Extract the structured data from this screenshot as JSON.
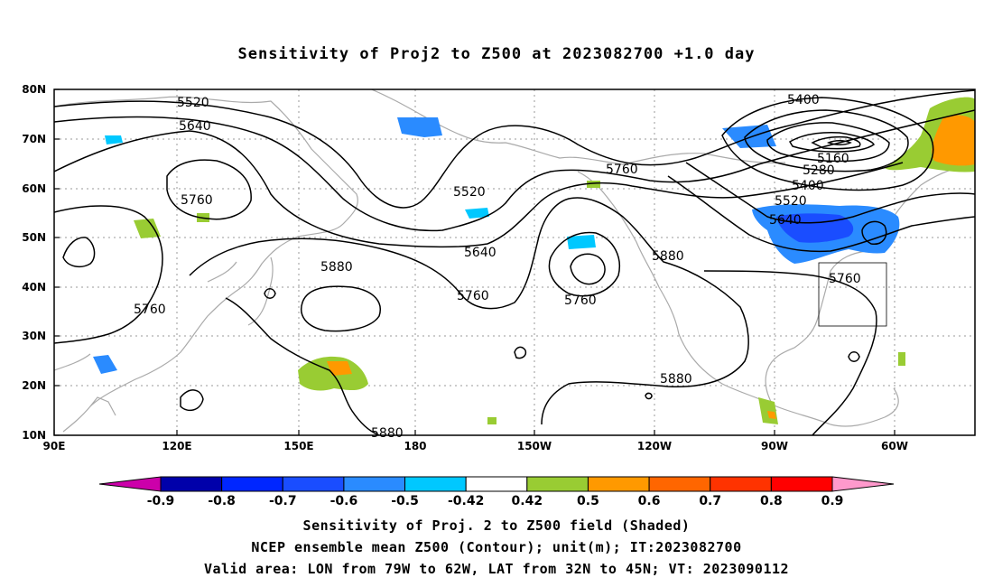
{
  "title": "Sensitivity of Proj2 to Z500 at 2023082700 +1.0 day",
  "lon_ticks": [
    "90E",
    "120E",
    "150E",
    "180",
    "150W",
    "120W",
    "90W",
    "60W"
  ],
  "lat_ticks": [
    "80N",
    "70N",
    "60N",
    "50N",
    "40N",
    "30N",
    "20N",
    "10N"
  ],
  "contour_labels": [
    "5520",
    "5640",
    "5760",
    "5760",
    "5880",
    "5520",
    "5760",
    "5640",
    "5760",
    "5880",
    "5760",
    "5880",
    "5880",
    "5400",
    "5160",
    "5280",
    "5400",
    "5520",
    "5640",
    "5760"
  ],
  "colorbar": {
    "labels": [
      "-0.9",
      "-0.8",
      "-0.7",
      "-0.6",
      "-0.5",
      "-0.42",
      "0.42",
      "0.5",
      "0.6",
      "0.7",
      "0.8",
      "0.9"
    ],
    "colors": [
      "#cc00aa",
      "#0000aa",
      "#0026ff",
      "#1a4dff",
      "#2a8bff",
      "#00c8ff",
      "#ffffff",
      "#99cc33",
      "#ff9900",
      "#ff6600",
      "#ff3300",
      "#ff0000",
      "#ff99cc"
    ]
  },
  "footer": {
    "line1": "Sensitivity of Proj. 2 to Z500 field (Shaded)",
    "line2": "NCEP ensemble mean Z500 (Contour); unit(m); IT:2023082700",
    "line3": "Valid area: LON from 79W to 62W, LAT from 32N to 45N; VT: 2023090112"
  }
}
